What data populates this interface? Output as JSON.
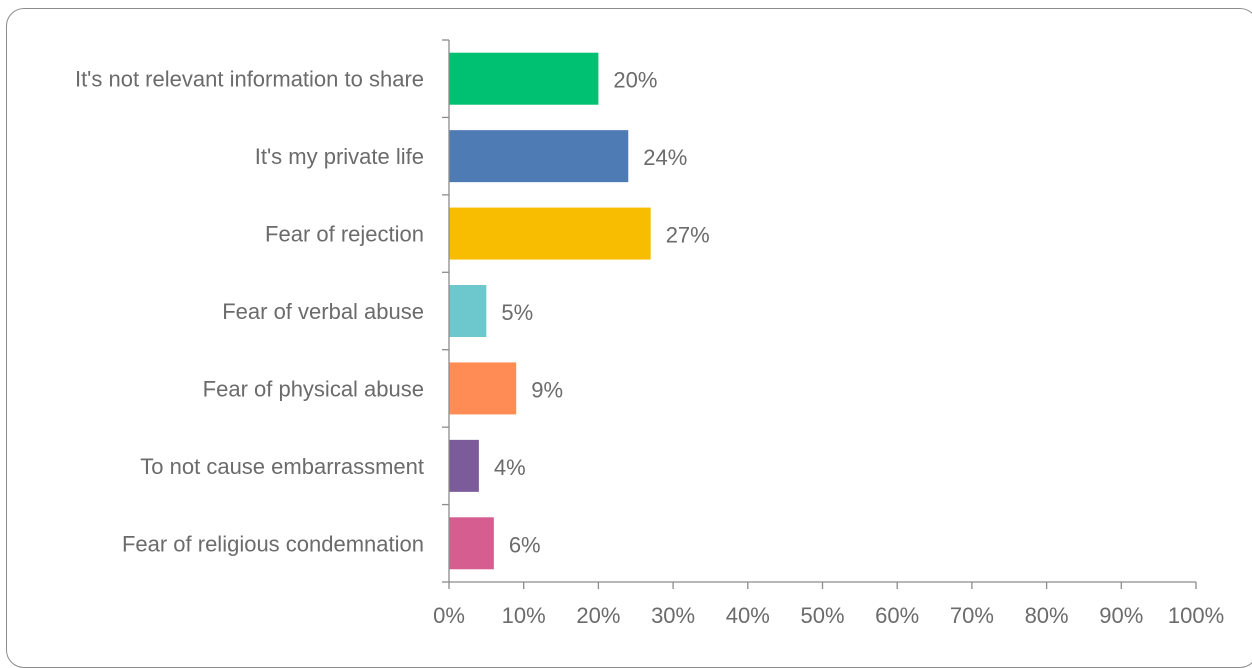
{
  "chart_data": {
    "type": "bar",
    "orientation": "horizontal",
    "categories": [
      "It's not relevant information to share",
      "It's my private life",
      "Fear of rejection",
      "Fear of verbal abuse",
      "Fear of physical abuse",
      "To not cause embarrassment",
      "Fear of religious condemnation"
    ],
    "values": [
      20,
      24,
      27,
      5,
      9,
      4,
      6
    ],
    "value_labels": [
      "20%",
      "24%",
      "27%",
      "5%",
      "9%",
      "4%",
      "6%"
    ],
    "colors": [
      "#00c171",
      "#4f7bb5",
      "#f8bd00",
      "#6dc8cd",
      "#ff8c55",
      "#7b5b99",
      "#d55d8f"
    ],
    "xlim": [
      0,
      100
    ],
    "x_ticks": [
      0,
      10,
      20,
      30,
      40,
      50,
      60,
      70,
      80,
      90,
      100
    ],
    "x_tick_labels": [
      "0%",
      "10%",
      "20%",
      "30%",
      "40%",
      "50%",
      "60%",
      "70%",
      "80%",
      "90%",
      "100%"
    ],
    "grid": false,
    "legend": "none",
    "title": "",
    "xlabel": "",
    "ylabel": ""
  }
}
